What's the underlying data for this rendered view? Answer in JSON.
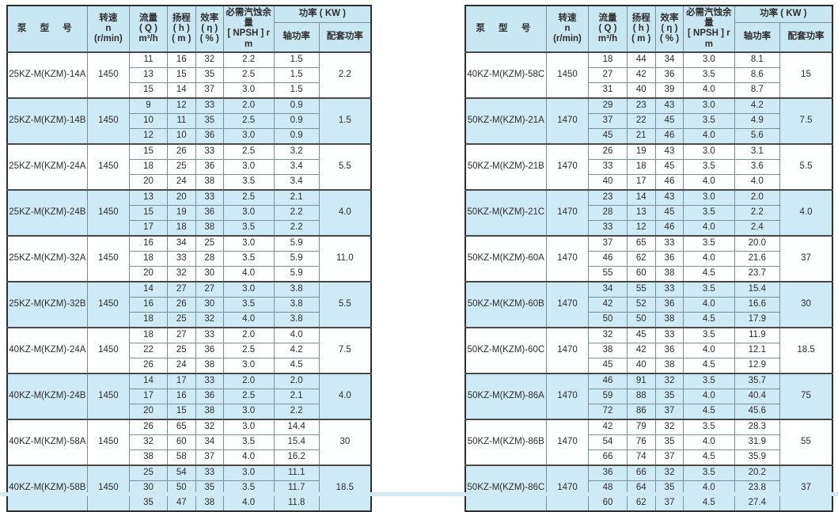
{
  "colors": {
    "header_bg": "#c9e6f3",
    "row_white_bg": "#fdfefe",
    "row_blue_bg": "#cfeaf7",
    "outer_border": "#2e2e2e",
    "group_border": "#4a4a4a",
    "inner_border": "#7d8e99",
    "text": "#2e2e2e",
    "bottom_strip": "#cfe9f5"
  },
  "header": {
    "model": "泵 型 号",
    "speed_l1": "转速",
    "speed_l2": "n",
    "speed_l3": "(r/min)",
    "flow_l1": "流量",
    "flow_l2": "( Q )",
    "flow_l3": "m³/h",
    "head_l1": "扬程",
    "head_l2": "( h )",
    "head_l3": "( m )",
    "eff_l1": "效率",
    "eff_l2": "( η )",
    "eff_l3": "( % )",
    "npsh_l1": "必需汽蚀余量",
    "npsh_l2": "[ NPSH ] r",
    "npsh_l3": "m",
    "power": "功率 ( KW )",
    "shaft": "轴功率",
    "rated": "配套功率"
  },
  "left_table": {
    "groups": [
      {
        "model": "25KZ-M(KZM)-14A",
        "speed": "1450",
        "rated": "2.2",
        "rows": [
          [
            "11",
            "16",
            "32",
            "2.2",
            "1.5"
          ],
          [
            "13",
            "15",
            "35",
            "2.5",
            "1.5"
          ],
          [
            "15",
            "14",
            "37",
            "3.0",
            "1.5"
          ]
        ]
      },
      {
        "model": "25KZ-M(KZM)-14B",
        "speed": "1450",
        "rated": "1.5",
        "rows": [
          [
            "9",
            "12",
            "33",
            "2.0",
            "0.9"
          ],
          [
            "10",
            "11",
            "35",
            "2.5",
            "0.9"
          ],
          [
            "12",
            "10",
            "36",
            "3.0",
            "0.9"
          ]
        ]
      },
      {
        "model": "25KZ-M(KZM)-24A",
        "speed": "1450",
        "rated": "5.5",
        "rows": [
          [
            "15",
            "26",
            "33",
            "2.5",
            "3.2"
          ],
          [
            "18",
            "25",
            "36",
            "3.0",
            "3.4"
          ],
          [
            "20",
            "24",
            "38",
            "3.5",
            "3.4"
          ]
        ]
      },
      {
        "model": "25KZ-M(KZM)-24B",
        "speed": "1450",
        "rated": "4.0",
        "rows": [
          [
            "13",
            "20",
            "33",
            "2.5",
            "2.1"
          ],
          [
            "15",
            "19",
            "36",
            "3.0",
            "2.2"
          ],
          [
            "17",
            "18",
            "38",
            "3.5",
            "2.2"
          ]
        ]
      },
      {
        "model": "25KZ-M(KZM)-32A",
        "speed": "1450",
        "rated": "11.0",
        "rows": [
          [
            "16",
            "34",
            "25",
            "3.0",
            "5.9"
          ],
          [
            "18",
            "33",
            "28",
            "3.5",
            "5.9"
          ],
          [
            "20",
            "32",
            "30",
            "4.0",
            "5.9"
          ]
        ]
      },
      {
        "model": "25KZ-M(KZM)-32B",
        "speed": "1450",
        "rated": "5.5",
        "rows": [
          [
            "14",
            "27",
            "27",
            "3.0",
            "3.8"
          ],
          [
            "16",
            "26",
            "30",
            "3.5",
            "3.8"
          ],
          [
            "18",
            "25",
            "32",
            "4.0",
            "3.8"
          ]
        ]
      },
      {
        "model": "40KZ-M(KZM)-24A",
        "speed": "1450",
        "rated": "7.5",
        "rows": [
          [
            "18",
            "27",
            "33",
            "2.0",
            "4.0"
          ],
          [
            "22",
            "25",
            "36",
            "2.5",
            "4.2"
          ],
          [
            "26",
            "24",
            "38",
            "3.0",
            "4.5"
          ]
        ]
      },
      {
        "model": "40KZ-M(KZM)-24B",
        "speed": "1450",
        "rated": "4.0",
        "rows": [
          [
            "14",
            "17",
            "33",
            "2.0",
            "2.0"
          ],
          [
            "17",
            "16",
            "36",
            "2.5",
            "2.1"
          ],
          [
            "20",
            "15",
            "38",
            "3.0",
            "2.2"
          ]
        ]
      },
      {
        "model": "40KZ-M(KZM)-58A",
        "speed": "1450",
        "rated": "30",
        "rows": [
          [
            "26",
            "65",
            "32",
            "3.0",
            "14.4"
          ],
          [
            "32",
            "60",
            "34",
            "3.5",
            "15.4"
          ],
          [
            "38",
            "58",
            "37",
            "4.0",
            "16.2"
          ]
        ]
      },
      {
        "model": "40KZ-M(KZM)-58B",
        "speed": "1450",
        "rated": "18.5",
        "rows": [
          [
            "25",
            "54",
            "33",
            "3.0",
            "11.1"
          ],
          [
            "30",
            "50",
            "35",
            "3.5",
            "11.7"
          ],
          [
            "35",
            "47",
            "38",
            "4.0",
            "11.8"
          ]
        ]
      }
    ]
  },
  "right_table": {
    "groups": [
      {
        "model": "40KZ-M(KZM)-58C",
        "speed": "1450",
        "rated": "15",
        "rows": [
          [
            "18",
            "44",
            "34",
            "3.0",
            "8.1"
          ],
          [
            "27",
            "42",
            "36",
            "3.5",
            "8.6"
          ],
          [
            "31",
            "40",
            "39",
            "4.0",
            "8.7"
          ]
        ]
      },
      {
        "model": "50KZ-M(KZM)-21A",
        "speed": "1470",
        "rated": "7.5",
        "rows": [
          [
            "29",
            "23",
            "43",
            "3.0",
            "4.2"
          ],
          [
            "37",
            "22",
            "45",
            "3.5",
            "4.9"
          ],
          [
            "45",
            "21",
            "46",
            "4.0",
            "5.6"
          ]
        ]
      },
      {
        "model": "50KZ-M(KZM)-21B",
        "speed": "1470",
        "rated": "5.5",
        "rows": [
          [
            "26",
            "19",
            "43",
            "3.0",
            "3.1"
          ],
          [
            "33",
            "18",
            "45",
            "3.5",
            "3.6"
          ],
          [
            "40",
            "17",
            "46",
            "4.0",
            "4.0"
          ]
        ]
      },
      {
        "model": "50KZ-M(KZM)-21C",
        "speed": "1470",
        "rated": "4.0",
        "rows": [
          [
            "23",
            "14",
            "43",
            "3.0",
            "2.0"
          ],
          [
            "28",
            "13",
            "45",
            "3.5",
            "2.2"
          ],
          [
            "33",
            "12",
            "46",
            "4.0",
            "2.4"
          ]
        ]
      },
      {
        "model": "50KZ-M(KZM)-60A",
        "speed": "1470",
        "rated": "37",
        "rows": [
          [
            "37",
            "65",
            "33",
            "3.5",
            "20.0"
          ],
          [
            "46",
            "62",
            "36",
            "4.0",
            "21.6"
          ],
          [
            "55",
            "60",
            "38",
            "4.5",
            "23.7"
          ]
        ]
      },
      {
        "model": "50KZ-M(KZM)-60B",
        "speed": "1470",
        "rated": "30",
        "rows": [
          [
            "34",
            "55",
            "33",
            "3.5",
            "15.4"
          ],
          [
            "42",
            "52",
            "36",
            "4.0",
            "16.6"
          ],
          [
            "50",
            "50",
            "38",
            "4.5",
            "17.9"
          ]
        ]
      },
      {
        "model": "50KZ-M(KZM)-60C",
        "speed": "1470",
        "rated": "18.5",
        "rows": [
          [
            "32",
            "45",
            "33",
            "3.5",
            "11.9"
          ],
          [
            "38",
            "42",
            "36",
            "4.0",
            "12.1"
          ],
          [
            "45",
            "40",
            "38",
            "4.5",
            "12.9"
          ]
        ]
      },
      {
        "model": "50KZ-M(KZM)-86A",
        "speed": "1470",
        "rated": "75",
        "rows": [
          [
            "46",
            "91",
            "32",
            "3.5",
            "35.7"
          ],
          [
            "59",
            "88",
            "35",
            "4.0",
            "40.4"
          ],
          [
            "72",
            "86",
            "37",
            "4.5",
            "45.6"
          ]
        ]
      },
      {
        "model": "50KZ-M(KZM)-86B",
        "speed": "1470",
        "rated": "55",
        "rows": [
          [
            "42",
            "79",
            "32",
            "3.5",
            "28.3"
          ],
          [
            "54",
            "76",
            "35",
            "4.0",
            "31.9"
          ],
          [
            "66",
            "74",
            "37",
            "4.5",
            "35.9"
          ]
        ]
      },
      {
        "model": "50KZ-M(KZM)-86C",
        "speed": "1470",
        "rated": "37",
        "rows": [
          [
            "36",
            "66",
            "32",
            "3.5",
            "20.2"
          ],
          [
            "48",
            "64",
            "35",
            "4.0",
            "23.8"
          ],
          [
            "60",
            "62",
            "37",
            "4.5",
            "27.4"
          ]
        ]
      }
    ]
  }
}
